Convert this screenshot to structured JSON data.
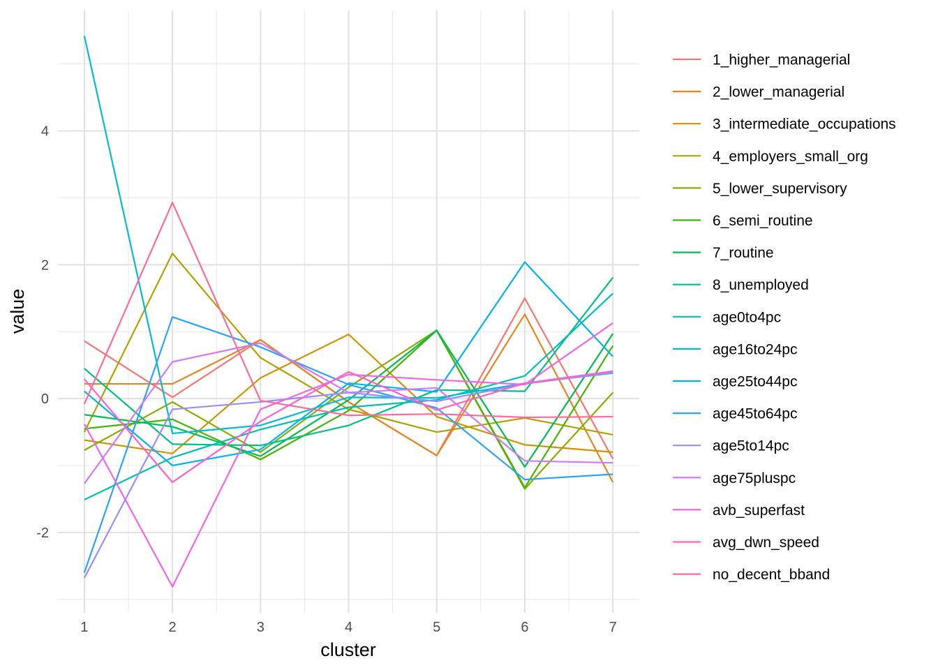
{
  "chart_data": {
    "type": "line",
    "xlabel": "cluster",
    "ylabel": "value",
    "x": [
      1,
      2,
      3,
      4,
      5,
      6,
      7
    ],
    "xlim": [
      0.7,
      7.3
    ],
    "ylim": [
      -3.2,
      5.8
    ],
    "y_ticks": [
      -2,
      0,
      2,
      4
    ],
    "x_ticks": [
      1,
      2,
      3,
      4,
      5,
      6,
      7
    ],
    "grid": true,
    "legend_position": "right",
    "series": [
      {
        "name": "1_higher_managerial",
        "color": "#F8766D",
        "values": [
          0.86,
          0.02,
          0.88,
          -0.05,
          -0.85,
          1.5,
          -0.9
        ]
      },
      {
        "name": "2_lower_managerial",
        "color": "#E7851E",
        "values": [
          0.22,
          0.22,
          0.88,
          -0.05,
          -0.85,
          1.26,
          -1.25
        ]
      },
      {
        "name": "3_intermediate_occupations",
        "color": "#D09400",
        "values": [
          -0.62,
          -0.82,
          0.31,
          0.96,
          -0.27,
          -0.69,
          -0.8
        ]
      },
      {
        "name": "4_employers_small_org",
        "color": "#B2A100",
        "values": [
          -0.5,
          2.17,
          0.61,
          -0.16,
          -0.5,
          -0.29,
          -0.54
        ]
      },
      {
        "name": "5_lower_supervisory",
        "color": "#89AC00",
        "values": [
          -0.77,
          -0.05,
          -0.8,
          0.17,
          1.02,
          -1.35,
          0.09
        ]
      },
      {
        "name": "6_semi_routine",
        "color": "#45B500",
        "values": [
          -0.45,
          -0.31,
          -0.91,
          -0.18,
          1.02,
          -1.33,
          0.79
        ]
      },
      {
        "name": "7_routine",
        "color": "#00BC51",
        "values": [
          -0.24,
          -0.42,
          -0.86,
          -0.02,
          1.02,
          -1.02,
          0.97
        ]
      },
      {
        "name": "8_unemployed",
        "color": "#00C087",
        "values": [
          0.45,
          -0.68,
          -0.7,
          -0.4,
          0.13,
          0.11,
          1.81
        ]
      },
      {
        "name": "age0to4pc",
        "color": "#00C0B2",
        "values": [
          -1.51,
          -0.88,
          -0.46,
          -0.13,
          -0.02,
          0.34,
          1.57
        ]
      },
      {
        "name": "age16to24pc",
        "color": "#00BCD6",
        "values": [
          5.42,
          -0.52,
          -0.4,
          0.02,
          0.01,
          0.23,
          0.38
        ]
      },
      {
        "name": "age25to44pc",
        "color": "#00B3F2",
        "values": [
          0.11,
          -1.0,
          -0.76,
          0.23,
          0.1,
          2.04,
          0.63
        ]
      },
      {
        "name": "age45to64pc",
        "color": "#29A3FF",
        "values": [
          -2.6,
          1.22,
          0.77,
          0.21,
          -0.14,
          -1.21,
          -1.13
        ]
      },
      {
        "name": "age5to14pc",
        "color": "#9C8DFF",
        "values": [
          -2.68,
          -0.16,
          -0.05,
          0.09,
          -0.04,
          0.22,
          0.39
        ]
      },
      {
        "name": "age75pluspc",
        "color": "#D277FF",
        "values": [
          -1.27,
          0.55,
          0.83,
          0.09,
          0.16,
          -0.93,
          -0.96
        ]
      },
      {
        "name": "avb_superfast",
        "color": "#F166E8",
        "values": [
          -0.38,
          -2.81,
          -0.16,
          0.36,
          0.28,
          0.21,
          1.13
        ]
      },
      {
        "name": "avg_dwn_speed",
        "color": "#FF61C7",
        "values": [
          0.29,
          -1.25,
          -0.34,
          0.4,
          -0.17,
          0.23,
          0.41
        ]
      },
      {
        "name": "no_decent_bband",
        "color": "#FF699C",
        "values": [
          -0.08,
          2.93,
          -0.03,
          -0.25,
          -0.23,
          -0.28,
          -0.27
        ]
      }
    ]
  }
}
